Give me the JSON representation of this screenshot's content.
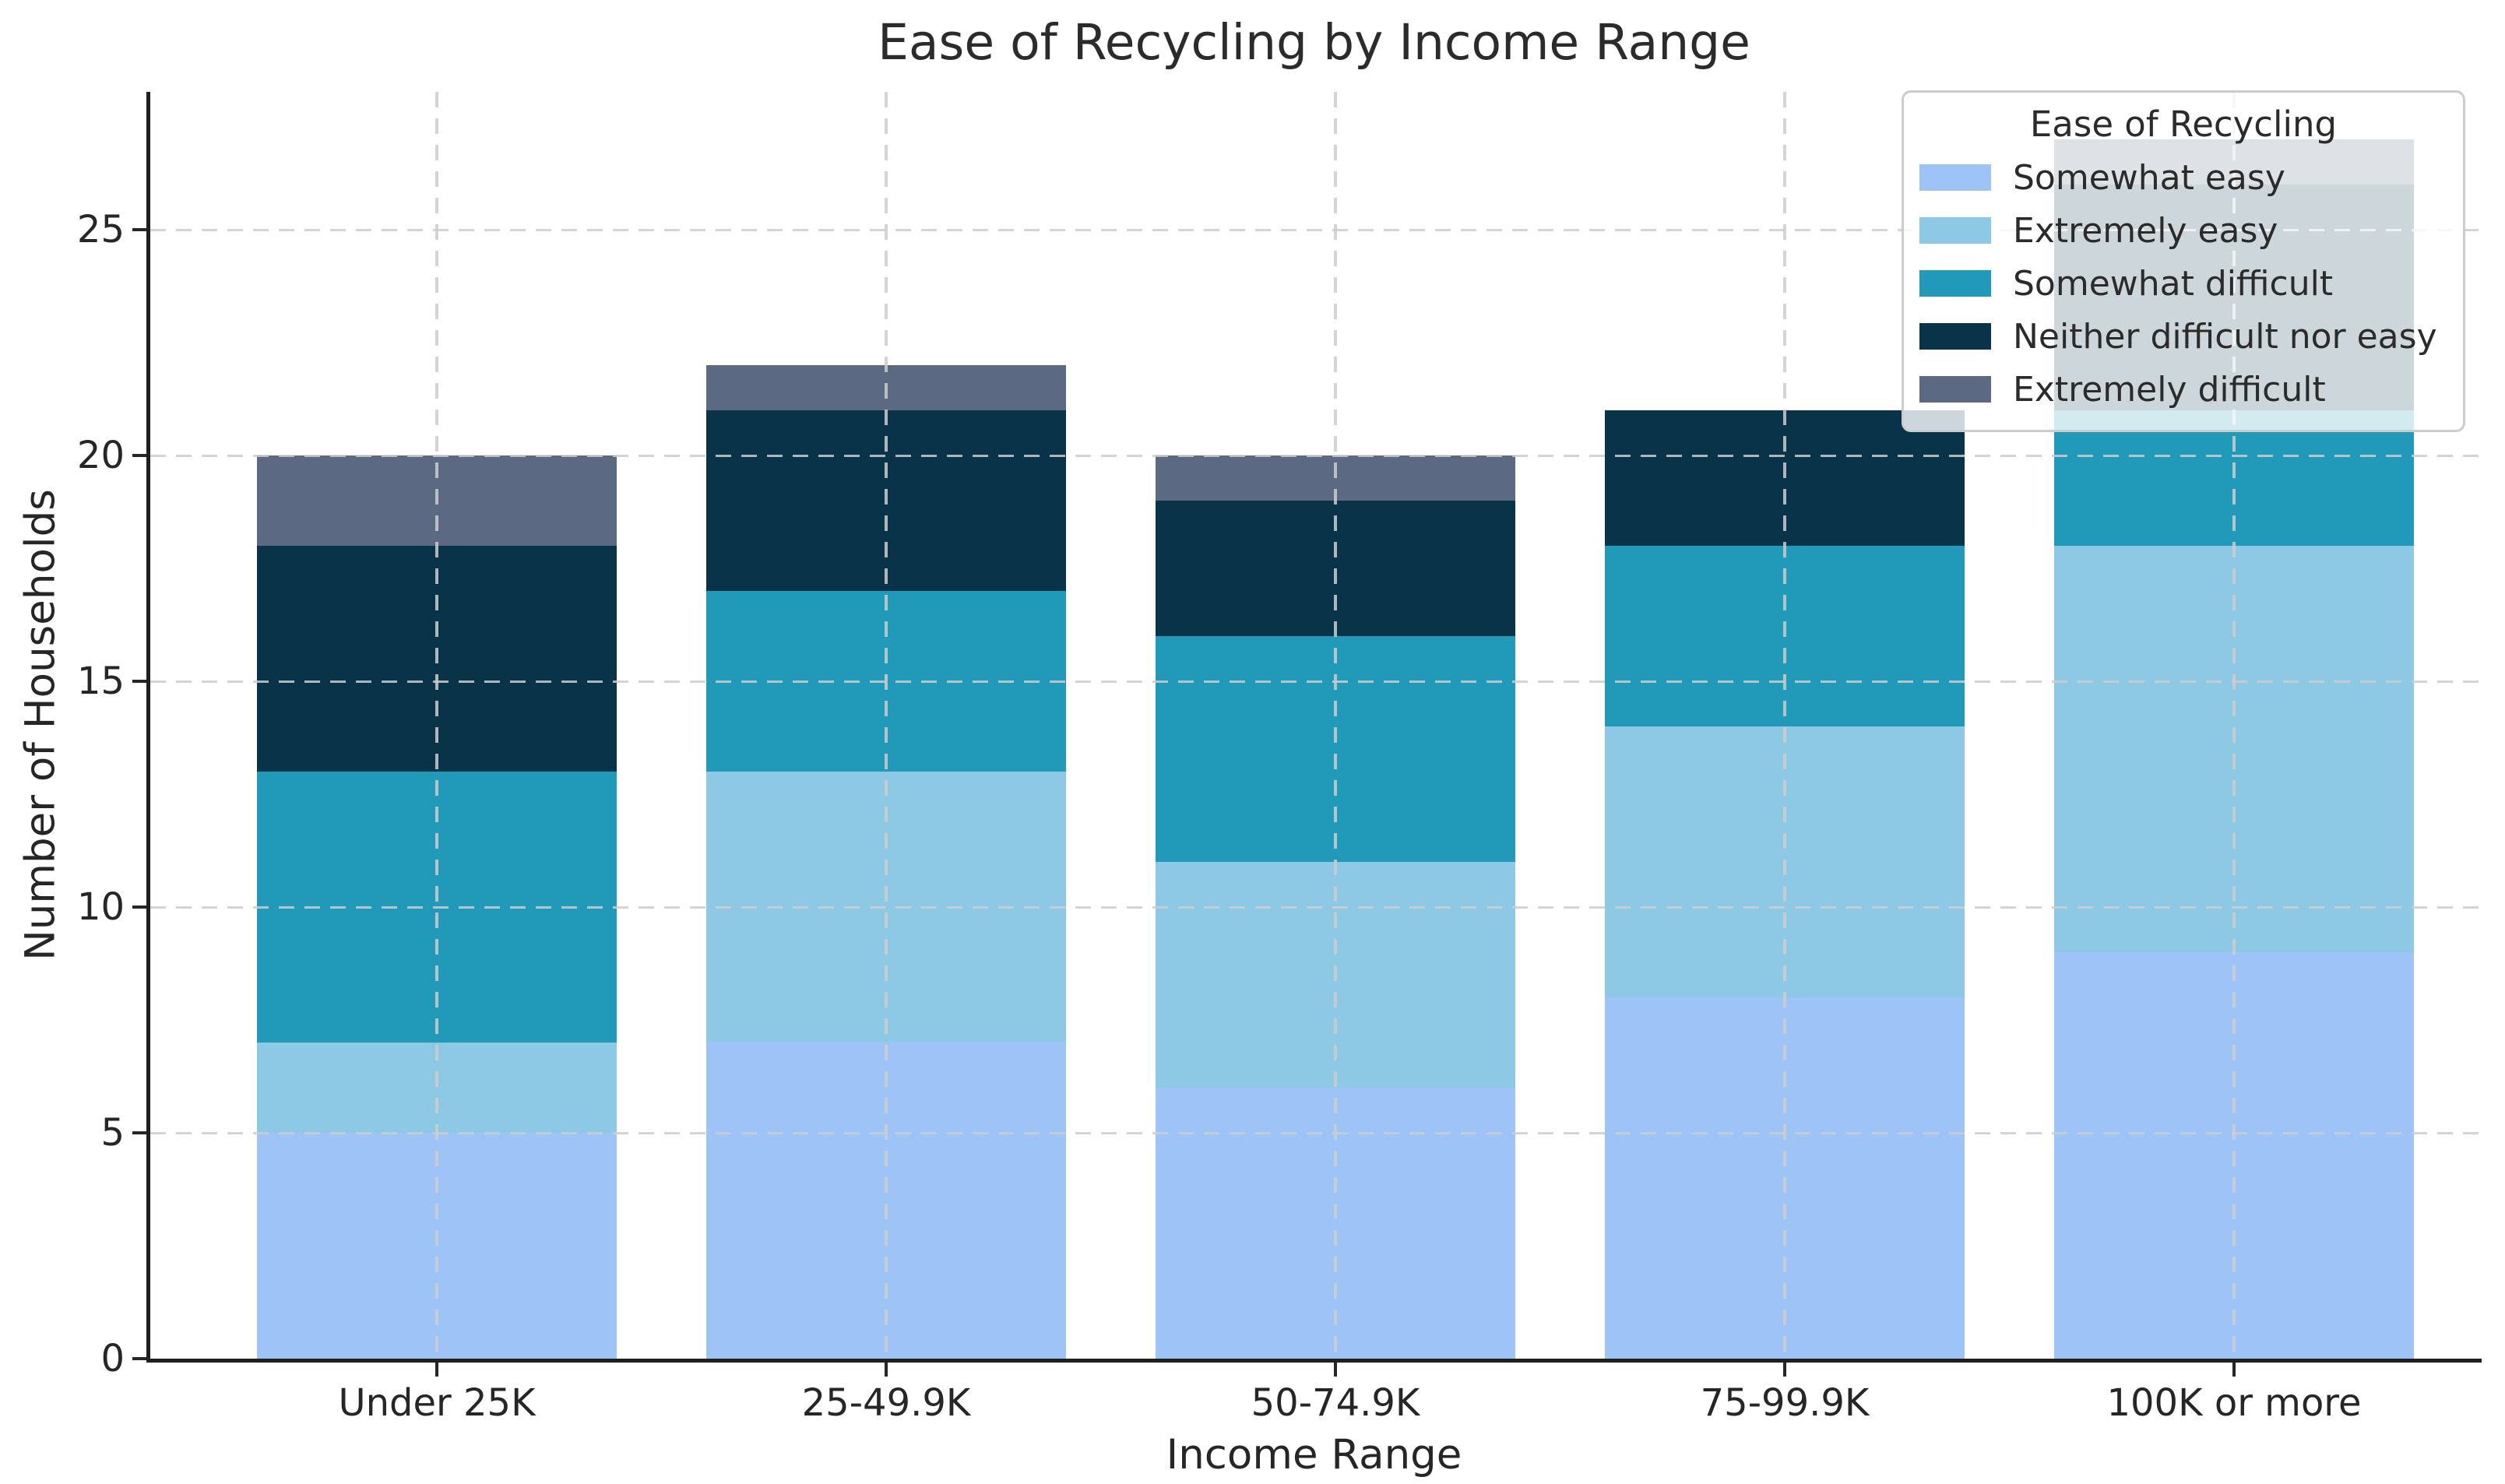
{
  "title": "Ease of Recycling by Income Range",
  "axes": {
    "x_label": "Income Range",
    "y_label": "Number of Households",
    "y_ticks": [
      "0",
      "5",
      "10",
      "15",
      "20",
      "25"
    ],
    "x_tick_labels": [
      "Under 25K",
      "25-49.9K",
      "50-74.9K",
      "75-99.9K",
      "100K or more"
    ]
  },
  "legend": {
    "title": "Ease of Recycling",
    "position": "upper right"
  },
  "colors": {
    "background": "#ffffff",
    "grid": "#cccccc",
    "axis": "#262626",
    "text": "#2b2b2b",
    "somewhat_easy": "#9ec3f7",
    "extremely_easy": "#8dc9e5",
    "somewhat_difficult": "#2199b8",
    "neither_difficult_nor_easy": "#083349",
    "extremely_difficult": "#5c6982"
  },
  "chart_data": {
    "type": "bar",
    "stacked": true,
    "title": "Ease of Recycling by Income Range",
    "xlabel": "Income Range",
    "ylabel": "Number of Households",
    "ylim": [
      0,
      28
    ],
    "y_tick_values": [
      0,
      5,
      10,
      15,
      20,
      25
    ],
    "grid": "dashed",
    "legend_title": "Ease of Recycling",
    "legend_position": "upper right",
    "categories": [
      "Under 25K",
      "25-49.9K",
      "50-74.9K",
      "75-99.9K",
      "100K or more"
    ],
    "series": [
      {
        "name": "Somewhat easy",
        "color": "#9ec3f7",
        "values": [
          5,
          7,
          6,
          8,
          9
        ]
      },
      {
        "name": "Extremely easy",
        "color": "#8dc9e5",
        "values": [
          2,
          6,
          5,
          6,
          9
        ]
      },
      {
        "name": "Somewhat difficult",
        "color": "#2199b8",
        "values": [
          6,
          4,
          5,
          4,
          3
        ]
      },
      {
        "name": "Neither difficult nor easy",
        "color": "#083349",
        "values": [
          5,
          4,
          3,
          3,
          5
        ]
      },
      {
        "name": "Extremely difficult",
        "color": "#5c6982",
        "values": [
          2,
          1,
          1,
          0,
          1
        ]
      }
    ],
    "stack_totals": [
      20,
      22,
      20,
      21,
      27
    ]
  }
}
